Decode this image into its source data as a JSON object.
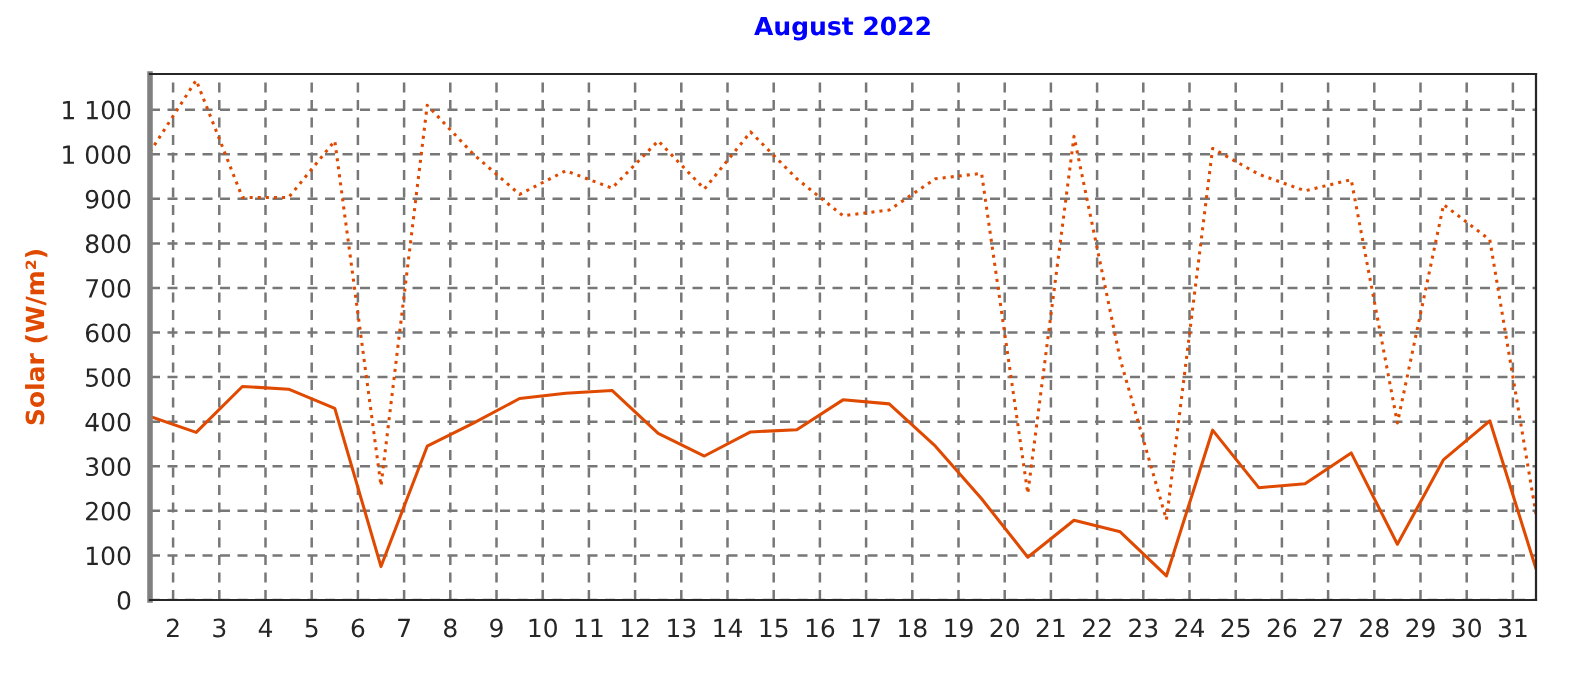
{
  "chart_data": {
    "type": "line",
    "title": "August 2022",
    "ylabel": "Solar (W/m²)",
    "x": [
      1.5,
      2.5,
      3.5,
      4.5,
      5.5,
      6.5,
      7.5,
      8.5,
      9.5,
      10.5,
      11.5,
      12.5,
      13.5,
      14.5,
      15.5,
      16.5,
      17.5,
      18.5,
      19.5,
      20.5,
      21.5,
      22.5,
      23.5,
      24.5,
      25.5,
      26.5,
      27.5,
      28.5,
      29.5,
      30.5,
      31.5
    ],
    "series": [
      {
        "color": "#e04a00",
        "line_style": "dotted",
        "values": [
          1005,
          1166,
          903,
          903,
          1030,
          256,
          1110,
          1000,
          910,
          963,
          924,
          1030,
          922,
          1050,
          945,
          862,
          875,
          945,
          957,
          239,
          1040,
          540,
          180,
          1013,
          955,
          918,
          943,
          397,
          887,
          808,
          193
        ]
      },
      {
        "color": "#e04a00",
        "line_style": "solid",
        "values": [
          412,
          376,
          479,
          473,
          430,
          75,
          345,
          397,
          452,
          464,
          470,
          374,
          323,
          377,
          382,
          449,
          440,
          345,
          227,
          96,
          179,
          153,
          54,
          381,
          252,
          261,
          330,
          125,
          315,
          402,
          70
        ]
      }
    ],
    "xlim": [
      1.5,
      31.5
    ],
    "xticks": [
      2,
      3,
      4,
      5,
      6,
      7,
      8,
      9,
      10,
      11,
      12,
      13,
      14,
      15,
      16,
      17,
      18,
      19,
      20,
      21,
      22,
      23,
      24,
      25,
      26,
      27,
      28,
      29,
      30,
      31
    ],
    "ylim": [
      0,
      1180
    ],
    "yticks": [
      0,
      100,
      200,
      300,
      400,
      500,
      600,
      700,
      800,
      900,
      {
        "value": 1000,
        "label": "1 000"
      },
      {
        "value": 1100,
        "label": "1 100"
      }
    ],
    "grid": true,
    "legend": false,
    "marker": "none"
  }
}
